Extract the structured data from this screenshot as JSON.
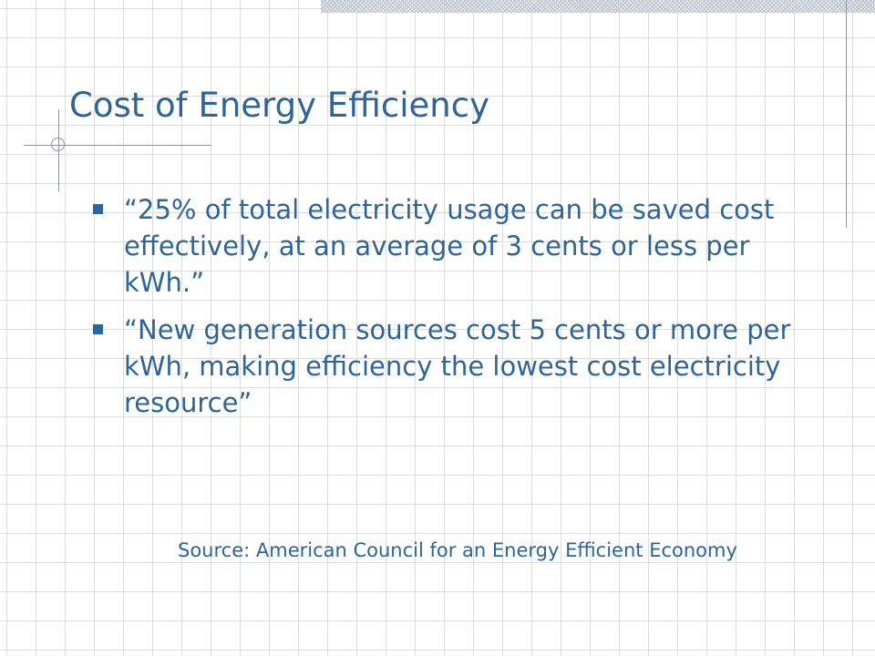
{
  "slide": {
    "title": "Cost of Energy Efficiency",
    "bullets": [
      "“25% of total electricity usage can be saved cost effectively, at an average of 3 cents or less per kWh.”",
      "“New generation sources cost 5 cents or more per kWh, making efficiency the lowest cost electricity resource”"
    ],
    "source": "Source: American Council for an Energy Efficient Economy"
  },
  "colors": {
    "text": "#2e6496",
    "grid": "#d9dde3",
    "accent_line": "#8a94a6",
    "background": "#ffffff"
  },
  "icons": {
    "bullet": "square-bullet-icon"
  }
}
